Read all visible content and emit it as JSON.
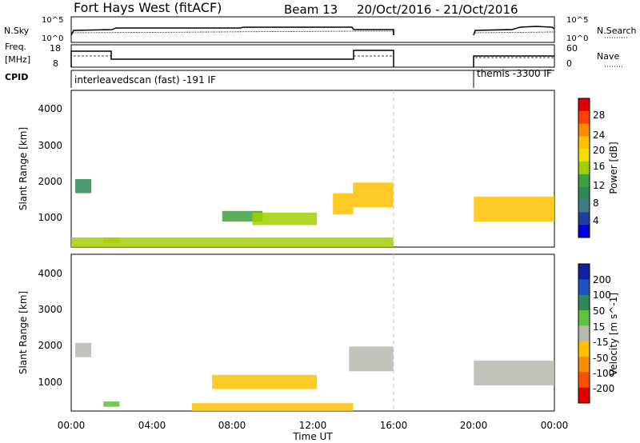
{
  "header": {
    "station": "Fort Hays West (fitACF)",
    "beam": "Beam 13",
    "date_range": "20/Oct/2016 - 21/Oct/2016"
  },
  "noise_panel": {
    "left_label": "N.Sky",
    "right_label": "N.Search",
    "ticks_left": [
      "10^5",
      "10^0"
    ],
    "ticks_right": [
      "10^5",
      "10^0"
    ]
  },
  "freq_panel": {
    "left_label_line1": "Freq.",
    "left_label_line2": "[MHz]",
    "right_label": "Nave",
    "ticks_left": [
      "18",
      "8"
    ],
    "ticks_right": [
      "60",
      "0"
    ]
  },
  "cpid_panel": {
    "label": "CPID",
    "modes": [
      "interleavedscan (fast) -191 IF",
      "themis -3300 IF"
    ]
  },
  "axes": {
    "ylabel": "Slant Range [km]",
    "xlabel": "Time UT",
    "y_ticks": [
      "4000",
      "3000",
      "2000",
      "1000"
    ],
    "x_ticks": [
      "00:00",
      "04:00",
      "08:00",
      "12:00",
      "16:00",
      "20:00",
      "00:00"
    ]
  },
  "power_colorbar": {
    "label": "Power [dB]",
    "ticks": [
      "28",
      "24",
      "20",
      "16",
      "12",
      "8",
      "4"
    ],
    "colors": [
      "#e00000",
      "#ff4000",
      "#ff8c00",
      "#ffc000",
      "#f0e000",
      "#a0d000",
      "#40a040",
      "#2e8b57",
      "#3c7a8c",
      "#2040a0",
      "#0000e0"
    ]
  },
  "velocity_colorbar": {
    "label": "Velocity [m s^-1]",
    "ticks": [
      "200",
      "100",
      "50",
      "15",
      "-15",
      "-50",
      "-100",
      "-200"
    ],
    "colors": [
      "#1020a0",
      "#2050c0",
      "#2e8b57",
      "#60c040",
      "#b8b8b0",
      "#ffc000",
      "#ff8c00",
      "#ff5000",
      "#e00000"
    ]
  },
  "chart_data": [
    {
      "type": "heatmap",
      "title": "Power",
      "xlabel": "Time UT",
      "ylabel": "Slant Range [km]",
      "xlim_hours": [
        0,
        24
      ],
      "ylim": [
        180,
        4600
      ],
      "zlabel": "Power [dB]",
      "zlim": [
        0,
        30
      ],
      "patches": [
        {
          "t": [
            0.2,
            1.0
          ],
          "r": [
            1700,
            2100
          ],
          "z": 10
        },
        {
          "t": [
            1.6,
            2.4
          ],
          "r": [
            300,
            450
          ],
          "z": 22
        },
        {
          "t": [
            0.0,
            16.0
          ],
          "r": [
            180,
            450
          ],
          "z": 14
        },
        {
          "t": [
            7.5,
            9.5
          ],
          "r": [
            900,
            1200
          ],
          "z": 12
        },
        {
          "t": [
            9.0,
            12.2
          ],
          "r": [
            800,
            1150
          ],
          "z": 14
        },
        {
          "t": [
            13.0,
            14.0
          ],
          "r": [
            1100,
            1700
          ],
          "z": 22
        },
        {
          "t": [
            14.0,
            16.0
          ],
          "r": [
            1300,
            2000
          ],
          "z": 20
        },
        {
          "t": [
            20.0,
            24.0
          ],
          "r": [
            900,
            1600
          ],
          "z": 20
        }
      ]
    },
    {
      "type": "heatmap",
      "title": "Velocity",
      "xlabel": "Time UT",
      "ylabel": "Slant Range [km]",
      "xlim_hours": [
        0,
        24
      ],
      "ylim": [
        180,
        4600
      ],
      "zlabel": "Velocity [m s^-1]",
      "zlim": [
        -200,
        200
      ],
      "patches": [
        {
          "t": [
            0.2,
            1.0
          ],
          "r": [
            1700,
            2100
          ],
          "z": 0
        },
        {
          "t": [
            1.6,
            2.4
          ],
          "r": [
            300,
            450
          ],
          "z": 40
        },
        {
          "t": [
            6.0,
            14.0
          ],
          "r": [
            180,
            400
          ],
          "z": -60
        },
        {
          "t": [
            7.0,
            12.2
          ],
          "r": [
            800,
            1200
          ],
          "z": -40
        },
        {
          "t": [
            13.8,
            16.0
          ],
          "r": [
            1300,
            2000
          ],
          "z": 0
        },
        {
          "t": [
            20.0,
            24.0
          ],
          "r": [
            900,
            1600
          ],
          "z": 0
        }
      ]
    }
  ]
}
